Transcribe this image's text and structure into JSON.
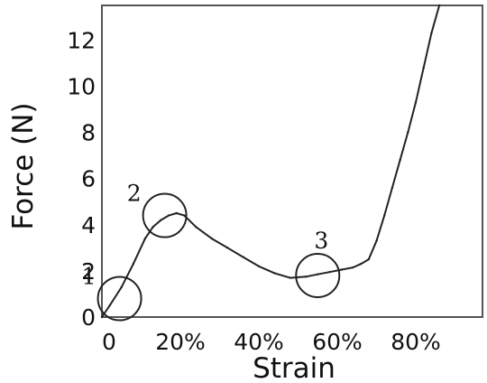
{
  "chart_data": {
    "type": "line",
    "xlabel": "Strain",
    "ylabel": "Force (N)",
    "xlim": [
      0,
      0.97
    ],
    "ylim": [
      0,
      13.5
    ],
    "x_ticks": [
      {
        "value": 0,
        "label": "0"
      },
      {
        "value": 0.2,
        "label": "20%"
      },
      {
        "value": 0.4,
        "label": "40%"
      },
      {
        "value": 0.6,
        "label": "60%"
      },
      {
        "value": 0.8,
        "label": "80%"
      }
    ],
    "y_ticks": [
      {
        "value": 0,
        "label": "0"
      },
      {
        "value": 2,
        "label": "2"
      },
      {
        "value": 4,
        "label": "4"
      },
      {
        "value": 6,
        "label": "6"
      },
      {
        "value": 8,
        "label": "8"
      },
      {
        "value": 10,
        "label": "10"
      },
      {
        "value": 12,
        "label": "12"
      }
    ],
    "grid": false,
    "series": [
      {
        "color": "#222222",
        "x": [
          0.0,
          0.02,
          0.05,
          0.08,
          0.11,
          0.13,
          0.15,
          0.17,
          0.19,
          0.21,
          0.24,
          0.28,
          0.32,
          0.36,
          0.4,
          0.44,
          0.48,
          0.52,
          0.55,
          0.58,
          0.61,
          0.64,
          0.66,
          0.68,
          0.7,
          0.72,
          0.74,
          0.76,
          0.78,
          0.8,
          0.82,
          0.84,
          0.86
        ],
        "y": [
          0.0,
          0.5,
          1.3,
          2.3,
          3.4,
          3.9,
          4.2,
          4.4,
          4.5,
          4.4,
          3.9,
          3.4,
          3.0,
          2.6,
          2.2,
          1.9,
          1.7,
          1.75,
          1.85,
          1.95,
          2.05,
          2.15,
          2.3,
          2.5,
          3.3,
          4.4,
          5.6,
          6.8,
          8.0,
          9.3,
          10.8,
          12.3,
          13.5
        ]
      }
    ],
    "annotations": [
      {
        "label": "1",
        "x": 0.045,
        "y": 0.8
      },
      {
        "label": "2",
        "x": 0.16,
        "y": 4.4
      },
      {
        "label": "3",
        "x": 0.55,
        "y": 1.8
      }
    ]
  }
}
